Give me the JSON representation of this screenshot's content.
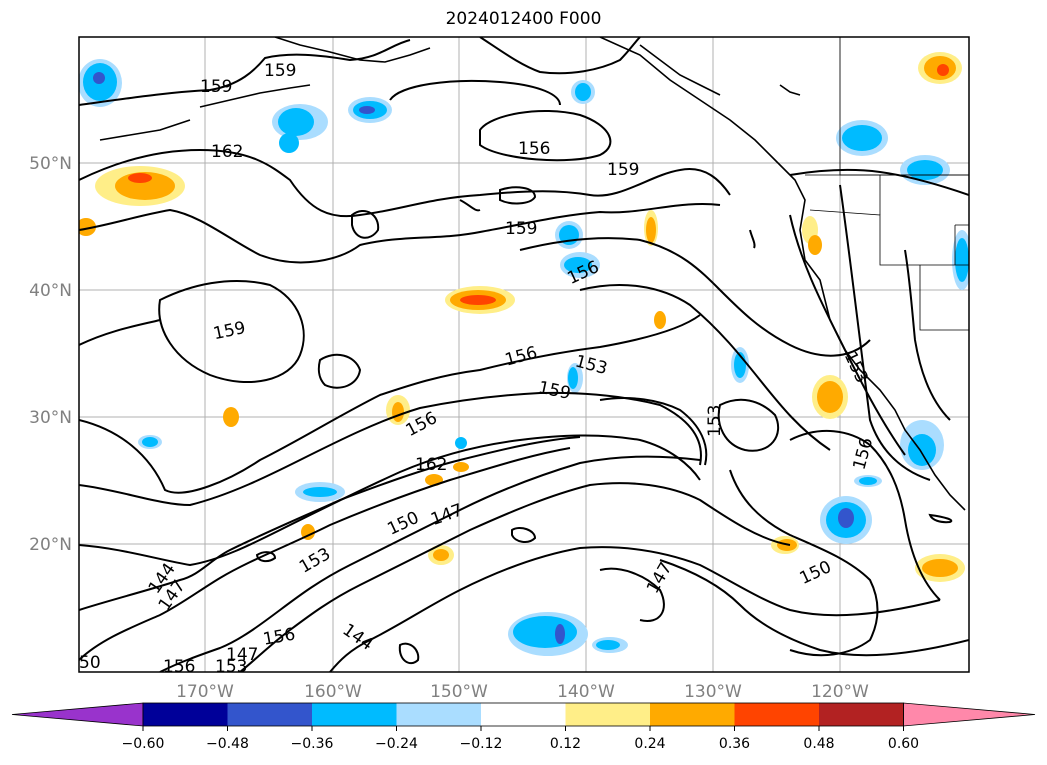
{
  "title": "2024012400 F000",
  "lat_labels": [
    "50°N",
    "40°N",
    "30°N",
    "20°N"
  ],
  "lon_labels": [
    "170°W",
    "160°W",
    "150°W",
    "140°W",
    "130°W",
    "120°W"
  ],
  "contour_labels": [
    "159",
    "159",
    "162",
    "156",
    "159",
    "159",
    "156",
    "159",
    "156",
    "153",
    "159",
    "156",
    "153",
    "153",
    "156",
    "162",
    "150",
    "147",
    "153",
    "144",
    "147",
    "147",
    "150",
    "156",
    "147",
    "153",
    "156",
    "144",
    "50"
  ],
  "colorbar": {
    "colors": [
      "#9933cc",
      "#000099",
      "#3355cc",
      "#00bbff",
      "#aaddff",
      "#ffffff",
      "#ffee88",
      "#ffaa00",
      "#ff4400",
      "#b22222",
      "#ff88aa"
    ],
    "ticks": [
      "−0.60",
      "−0.48",
      "−0.36",
      "−0.24",
      "−0.12",
      "0.12",
      "0.24",
      "0.36",
      "0.48",
      "0.60"
    ]
  }
}
